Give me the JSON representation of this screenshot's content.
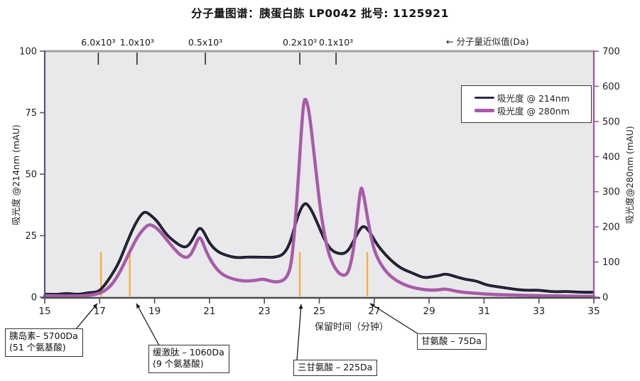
{
  "page_title": "分子量图谱：胰蛋白胨 LP0042  批号: 1125921",
  "chart_data": {
    "type": "line",
    "title": "分子量图谱：胰蛋白胨 LP0042  批号: 1125921",
    "plot_background": "#e9e9eb",
    "x_axis": {
      "label": "保留时间（分钟）",
      "min": 15,
      "max": 35,
      "ticks": [
        15,
        17,
        19,
        21,
        23,
        25,
        27,
        29,
        31,
        33,
        35
      ],
      "line_color": "#4d4d4d"
    },
    "y_left": {
      "label": "吸光度 @214nm (mAU)",
      "min": 0,
      "max": 100,
      "ticks": [
        0,
        25,
        50,
        75,
        100
      ],
      "line_color": "#55557f"
    },
    "y_right": {
      "label": "吸光度@280nm (mAU)",
      "min": 0,
      "max": 700,
      "ticks": [
        0,
        100,
        200,
        300,
        400,
        500,
        600,
        700
      ],
      "line_color": "#9b59a0"
    },
    "top_axis": {
      "label": "← 分子量近似值(Da)",
      "line_color": "#a3a3a3",
      "ticks": [
        {
          "label": "6.0x10³",
          "t": 16.95
        },
        {
          "label": "1.0x10³",
          "t": 18.36
        },
        {
          "label": "0.5x10³",
          "t": 20.85
        },
        {
          "label": "0.2x10³",
          "t": 24.29
        },
        {
          "label": "0.1x10³",
          "t": 25.61
        }
      ]
    },
    "legend": {
      "position": "upper-right"
    },
    "series": [
      {
        "name": "吸光度 @ 214nm",
        "axis": "left",
        "color": "#2d2d50",
        "outline": "#000000",
        "width": 2,
        "points": [
          [
            15,
            1.2
          ],
          [
            15.4,
            1.1
          ],
          [
            15.8,
            1.3
          ],
          [
            16.2,
            1.2
          ],
          [
            16.6,
            1.5
          ],
          [
            16.9,
            2
          ],
          [
            17.1,
            3.5
          ],
          [
            17.4,
            8
          ],
          [
            17.7,
            14
          ],
          [
            18,
            22
          ],
          [
            18.3,
            30
          ],
          [
            18.55,
            34
          ],
          [
            18.7,
            34.5
          ],
          [
            18.9,
            33
          ],
          [
            19.1,
            30.5
          ],
          [
            19.4,
            26
          ],
          [
            19.7,
            22.5
          ],
          [
            20,
            20.5
          ],
          [
            20.2,
            20.5
          ],
          [
            20.4,
            23.5
          ],
          [
            20.6,
            28.5
          ],
          [
            20.75,
            27.5
          ],
          [
            21,
            22
          ],
          [
            21.3,
            18.5
          ],
          [
            21.6,
            17
          ],
          [
            22,
            16.3
          ],
          [
            22.4,
            16.2
          ],
          [
            22.8,
            16.6
          ],
          [
            23.1,
            16.2
          ],
          [
            23.4,
            16.3
          ],
          [
            23.7,
            17.5
          ],
          [
            23.95,
            22
          ],
          [
            24.2,
            33
          ],
          [
            24.45,
            38.5
          ],
          [
            24.65,
            37
          ],
          [
            24.9,
            31
          ],
          [
            25.15,
            24
          ],
          [
            25.4,
            19.5
          ],
          [
            25.7,
            17.2
          ],
          [
            26,
            18
          ],
          [
            26.25,
            22.5
          ],
          [
            26.5,
            28
          ],
          [
            26.65,
            29
          ],
          [
            26.85,
            26
          ],
          [
            27.1,
            21.5
          ],
          [
            27.4,
            17
          ],
          [
            27.7,
            14
          ],
          [
            28,
            11.5
          ],
          [
            28.4,
            9.5
          ],
          [
            28.8,
            8
          ],
          [
            29.1,
            8
          ],
          [
            29.4,
            9
          ],
          [
            29.6,
            9.5
          ],
          [
            29.9,
            8.5
          ],
          [
            30.3,
            7.5
          ],
          [
            30.7,
            6.5
          ],
          [
            31.1,
            5.2
          ],
          [
            31.5,
            4.2
          ],
          [
            32,
            3.5
          ],
          [
            32.5,
            3
          ],
          [
            33,
            2.8
          ],
          [
            33.5,
            2.5
          ],
          [
            34,
            2.3
          ],
          [
            34.5,
            2.2
          ],
          [
            35,
            2.1
          ]
        ]
      },
      {
        "name": "吸光度 @ 280nm",
        "axis": "right",
        "color": "#a85ba8",
        "width": 4.5,
        "points": [
          [
            15,
            4
          ],
          [
            15.5,
            3
          ],
          [
            16,
            3
          ],
          [
            16.5,
            4
          ],
          [
            16.9,
            8
          ],
          [
            17.2,
            18
          ],
          [
            17.5,
            40
          ],
          [
            17.8,
            80
          ],
          [
            18.1,
            130
          ],
          [
            18.4,
            175
          ],
          [
            18.7,
            203
          ],
          [
            18.85,
            207
          ],
          [
            19.1,
            196
          ],
          [
            19.4,
            168
          ],
          [
            19.7,
            138
          ],
          [
            20,
            115
          ],
          [
            20.25,
            112
          ],
          [
            20.45,
            140
          ],
          [
            20.6,
            170
          ],
          [
            20.7,
            168
          ],
          [
            20.9,
            125
          ],
          [
            21.2,
            85
          ],
          [
            21.5,
            62
          ],
          [
            21.9,
            50
          ],
          [
            22.3,
            45
          ],
          [
            22.7,
            48
          ],
          [
            22.95,
            52
          ],
          [
            23.2,
            46
          ],
          [
            23.5,
            42
          ],
          [
            23.8,
            52
          ],
          [
            24,
            95
          ],
          [
            24.2,
            290
          ],
          [
            24.4,
            540
          ],
          [
            24.5,
            573
          ],
          [
            24.65,
            520
          ],
          [
            24.85,
            380
          ],
          [
            25.05,
            240
          ],
          [
            25.3,
            130
          ],
          [
            25.6,
            75
          ],
          [
            25.9,
            58
          ],
          [
            26.1,
            75
          ],
          [
            26.3,
            160
          ],
          [
            26.5,
            318
          ],
          [
            26.6,
            300
          ],
          [
            26.8,
            205
          ],
          [
            27,
            130
          ],
          [
            27.3,
            85
          ],
          [
            27.6,
            58
          ],
          [
            28,
            38
          ],
          [
            28.4,
            27
          ],
          [
            28.9,
            20
          ],
          [
            29.3,
            20
          ],
          [
            29.6,
            24
          ],
          [
            30,
            16
          ],
          [
            30.5,
            12
          ],
          [
            31,
            9
          ],
          [
            31.5,
            7
          ],
          [
            32,
            6
          ],
          [
            32.5,
            5
          ],
          [
            33,
            4
          ],
          [
            34,
            3
          ],
          [
            35,
            2
          ]
        ]
      }
    ],
    "markers": {
      "color": "#f2ae3c",
      "times": [
        17.05,
        18.1,
        24.29,
        26.75
      ]
    },
    "annotations": [
      {
        "id": "insulin",
        "line1": "胰岛素– 5700Da",
        "line2": "(51 个氨基酸)",
        "points_at_minute": 17.05
      },
      {
        "id": "bradykinin",
        "line1": "缓激肽 – 1060Da",
        "line2": "(9 个氨基酸)",
        "points_at_minute": 18.1
      },
      {
        "id": "triglycine",
        "line1": "三甘氨酸 – 225Da",
        "line2": "",
        "points_at_minute": 24.29
      },
      {
        "id": "glycine",
        "line1": "甘氨酸  – 75Da",
        "line2": "",
        "points_at_minute": 26.75
      }
    ]
  }
}
